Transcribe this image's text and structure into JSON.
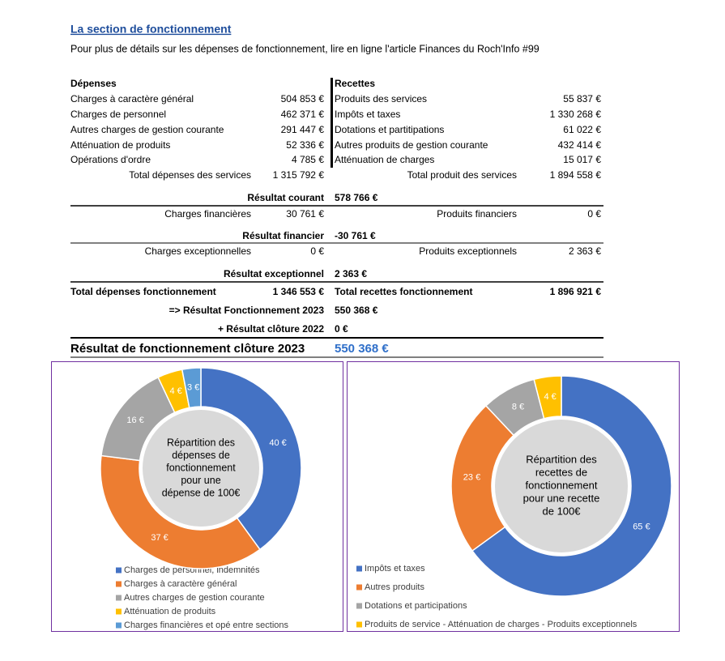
{
  "header": {
    "title": "La section de fonctionnement",
    "subtitle": "Pour plus de détails sur les dépenses de fonctionnement, lire en ligne l'article Finances du Roch'Info #99"
  },
  "table": {
    "headers": [
      "Dépenses",
      "Recettes"
    ],
    "rows": [
      [
        "Charges à caractère général",
        "504 853 €",
        "Produits des services",
        "55 837 €"
      ],
      [
        "Charges de personnel",
        "462 371 €",
        "Impôts et taxes",
        "1 330 268 €"
      ],
      [
        "Autres charges de gestion courante",
        "291 447 €",
        "Dotations et partitipations",
        "61 022 €"
      ],
      [
        "Atténuation de produits",
        "52 336 €",
        "Autres produits de gestion courante",
        "432 414 €"
      ],
      [
        "Opérations d'ordre",
        "4 785 €",
        "Atténuation de charges",
        "15 017 €"
      ]
    ],
    "totals_services": [
      "Total dépenses des services",
      "1 315 792 €",
      "Total produit des services",
      "1 894 558 €"
    ],
    "resultat_courant": [
      "Résultat courant",
      "578 766 €"
    ],
    "financier": [
      "Charges financières",
      "30 761 €",
      "Produits financiers",
      "0 €"
    ],
    "resultat_financier": [
      "Résultat financier",
      "-30 761 €"
    ],
    "exceptionnel": [
      "Charges exceptionnelles",
      "0 €",
      "Produits exceptionnels",
      "2 363 €"
    ],
    "resultat_exceptionnel": [
      "Résultat exceptionnel",
      "2 363 €"
    ],
    "totals_fonctionnement": [
      "Total dépenses fonctionnement",
      "1 346 553 €",
      "Total recettes fonctionnement",
      "1 896 921 €"
    ],
    "resultat_2023": [
      "=> Résultat Fonctionnement 2023",
      "550 368 €"
    ],
    "cloture_2022": [
      "+ Résultat clôture 2022",
      "0 €"
    ],
    "final": [
      "Résultat de fonctionnement clôture 2023",
      "550 368 €"
    ]
  },
  "chart_data": [
    {
      "type": "donut",
      "title": [
        "Répartition des",
        "dépenses de",
        "fonctionnement",
        "pour une",
        "dépense de 100€"
      ],
      "categories": [
        "Charges de personnel, indemnités",
        "Charges à caractère général",
        "Autres charges de gestion courante",
        "Atténuation de produits",
        "Charges financières et opé entre sections"
      ],
      "values": [
        40,
        37,
        16,
        4,
        3
      ],
      "value_labels": [
        "40 €",
        "37 €",
        "16 €",
        "4 €",
        "3 €"
      ],
      "colors": [
        "#4472c4",
        "#ed7d31",
        "#a5a5a5",
        "#ffc000",
        "#5b9bd5"
      ]
    },
    {
      "type": "donut",
      "title": [
        "Répartition des",
        "recettes de",
        "fonctionnement",
        "pour une recette",
        "de 100€"
      ],
      "categories": [
        "Impôts et taxes",
        "Autres produits",
        "Dotations et participations",
        "Produits de service - Atténuation de charges - Produits exceptionnels"
      ],
      "values": [
        65,
        23,
        8,
        4
      ],
      "value_labels": [
        "65 €",
        "23 €",
        "8 €",
        "4 €"
      ],
      "colors": [
        "#4472c4",
        "#ed7d31",
        "#a5a5a5",
        "#ffc000"
      ]
    }
  ]
}
